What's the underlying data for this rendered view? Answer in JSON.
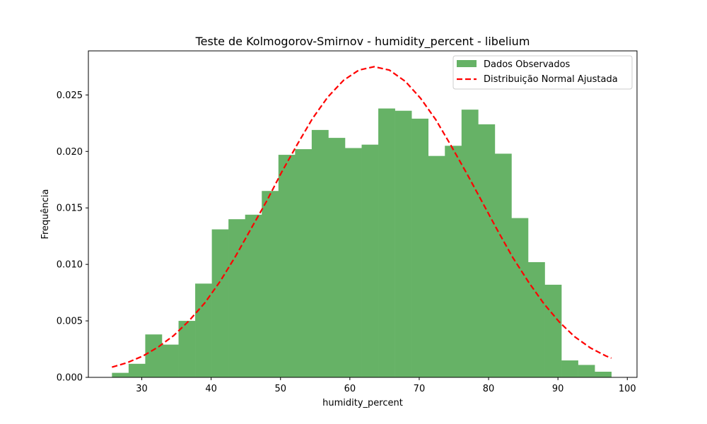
{
  "chart_data": {
    "type": "bar",
    "title": "Teste de Kolmogorov-Smirnov - humidity_percent - libelium",
    "xlabel": "humidity_percent",
    "ylabel": "Frequência",
    "xlim": [
      22.3,
      101.4
    ],
    "ylim": [
      0,
      0.0289
    ],
    "xticks": [
      30,
      40,
      50,
      60,
      70,
      80,
      90,
      100
    ],
    "xtick_labels": [
      "30",
      "40",
      "50",
      "60",
      "70",
      "80",
      "90",
      "100"
    ],
    "yticks": [
      0.0,
      0.005,
      0.01,
      0.015,
      0.02,
      0.025
    ],
    "ytick_labels": [
      "0.000",
      "0.005",
      "0.010",
      "0.015",
      "0.020",
      "0.025"
    ],
    "grid": false,
    "legend_position": "top-right",
    "colors": {
      "bars": "#66b266",
      "curve": "#ff0000"
    },
    "series": [
      {
        "name": "Dados Observados",
        "kind": "histogram",
        "bin_edges": [
          25.7,
          28.1,
          30.5,
          32.9,
          35.3,
          37.7,
          40.1,
          42.5,
          44.9,
          47.3,
          49.7,
          52.1,
          54.5,
          56.9,
          59.3,
          61.7,
          64.1,
          66.5,
          68.9,
          71.3,
          73.7,
          76.1,
          78.5,
          80.9,
          83.3,
          85.7,
          88.1,
          90.5,
          92.9,
          95.3,
          97.7
        ],
        "values": [
          0.0004,
          0.0012,
          0.0038,
          0.0029,
          0.005,
          0.0083,
          0.0131,
          0.014,
          0.0144,
          0.0165,
          0.0197,
          0.0202,
          0.0219,
          0.0212,
          0.0203,
          0.0206,
          0.0238,
          0.0236,
          0.0229,
          0.0196,
          0.0205,
          0.0237,
          0.0224,
          0.0198,
          0.0141,
          0.0102,
          0.0082,
          0.0015,
          0.0011,
          0.0005
        ]
      },
      {
        "name": "Distribuição Normal Ajustada",
        "kind": "line",
        "style": "dashed",
        "x": [
          25.7,
          27.9,
          30.2,
          32.4,
          34.6,
          36.8,
          39.1,
          41.3,
          43.5,
          45.7,
          48.0,
          50.2,
          52.4,
          54.6,
          56.8,
          59.1,
          61.3,
          63.5,
          65.7,
          68.0,
          70.2,
          72.4,
          74.6,
          76.9,
          79.1,
          81.3,
          83.5,
          85.8,
          88.0,
          90.2,
          92.4,
          94.7,
          96.9,
          97.7
        ],
        "y": [
          0.0009,
          0.0013,
          0.0019,
          0.0027,
          0.0037,
          0.005,
          0.0066,
          0.0085,
          0.0107,
          0.0131,
          0.0156,
          0.0182,
          0.0206,
          0.0229,
          0.0248,
          0.0263,
          0.0272,
          0.0275,
          0.0272,
          0.0262,
          0.0247,
          0.0228,
          0.0205,
          0.018,
          0.0155,
          0.013,
          0.0106,
          0.0084,
          0.0065,
          0.0049,
          0.0036,
          0.0026,
          0.0019,
          0.0017
        ]
      }
    ]
  }
}
